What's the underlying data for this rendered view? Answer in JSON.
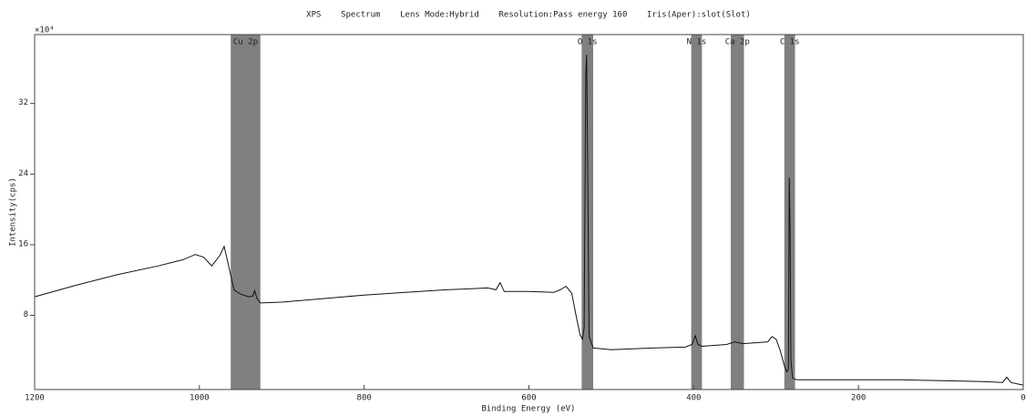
{
  "chart_data": {
    "type": "line",
    "title": "XPS    Spectrum    Lens Mode:Hybrid    Resolution:Pass energy 160    Iris(Aper):slot(Slot)",
    "x_label": "Binding Energy (eV)",
    "y_label": "Intensity(cps)",
    "y_multiplier": "×10⁴",
    "xlim": [
      1200,
      0
    ],
    "xticks": [
      1200,
      1000,
      800,
      600,
      400,
      200,
      0
    ],
    "ylim": [
      -0.4,
      39.8
    ],
    "yticks": [
      8,
      16,
      24,
      32
    ],
    "grid": false,
    "region_color": "#808080",
    "regions": [
      {
        "label": "Cu 2p",
        "start": 962,
        "end": 926
      },
      {
        "label": "O 1s",
        "start": 536,
        "end": 522
      },
      {
        "label": "N 1s",
        "start": 403,
        "end": 390
      },
      {
        "label": "Ca 2p",
        "start": 355,
        "end": 339
      },
      {
        "label": "C 1s",
        "start": 290,
        "end": 277
      }
    ],
    "series": [
      {
        "color": "#111111",
        "x": [
          1200,
          1150,
          1100,
          1050,
          1020,
          1005,
          995,
          985,
          975,
          970,
          965,
          958,
          950,
          940,
          935,
          933,
          930,
          926,
          900,
          850,
          800,
          750,
          700,
          650,
          640,
          635,
          630,
          600,
          570,
          562,
          555,
          548,
          543,
          538,
          535,
          533,
          531,
          530,
          529,
          527,
          522,
          500,
          450,
          410,
          402,
          398,
          395,
          390,
          360,
          350,
          340,
          310,
          305,
          300,
          295,
          290,
          287,
          285,
          284,
          283,
          282,
          280,
          275,
          200,
          150,
          100,
          50,
          25,
          20,
          15,
          5,
          0
        ],
        "values": [
          10.1,
          11.4,
          12.6,
          13.6,
          14.3,
          14.9,
          14.6,
          13.6,
          14.8,
          15.8,
          13.8,
          10.9,
          10.4,
          10.1,
          10.2,
          10.8,
          9.9,
          9.4,
          9.5,
          9.9,
          10.3,
          10.6,
          10.9,
          11.1,
          10.9,
          11.7,
          10.7,
          10.7,
          10.6,
          10.9,
          11.3,
          10.5,
          8.1,
          5.8,
          5.3,
          6.6,
          35.4,
          37.5,
          28.2,
          5.6,
          4.3,
          4.1,
          4.3,
          4.4,
          4.7,
          5.7,
          4.7,
          4.5,
          4.7,
          5.0,
          4.8,
          5.0,
          5.6,
          5.3,
          4.0,
          2.3,
          1.6,
          1.9,
          23.6,
          17.9,
          3.0,
          0.9,
          0.7,
          0.7,
          0.7,
          0.6,
          0.5,
          0.4,
          1.0,
          0.4,
          0.2,
          0.1
        ]
      }
    ]
  }
}
